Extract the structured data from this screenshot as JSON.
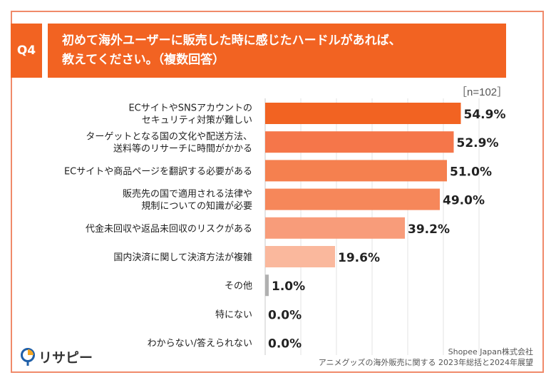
{
  "question": {
    "badge": "Q4",
    "title_line1": "初めて海外ユーザーに販売した時に感じたハードルがあれば、",
    "title_line2": "教えてください。（複数回答）"
  },
  "sample_size": "［n=102］",
  "chart_data": {
    "type": "bar",
    "orientation": "horizontal",
    "title": "初めて海外ユーザーに販売した時に感じたハードルがあれば、教えてください。（複数回答）",
    "categories": [
      [
        "ECサイトやSNSアカウントの",
        "セキュリティ対策が難しい"
      ],
      [
        "ターゲットとなる国の文化や配送方法、",
        "送料等のリサーチに時間がかかる"
      ],
      [
        "ECサイトや商品ページを翻訳する必要がある"
      ],
      [
        "販売先の国で適用される法律や",
        "規制についての知識が必要"
      ],
      [
        "代金未回収や返品未回収のリスクがある"
      ],
      [
        "国内決済に関して決済方法が複雑"
      ],
      [
        "その他"
      ],
      [
        "特にない"
      ],
      [
        "わからない/答えられない"
      ]
    ],
    "values": [
      54.9,
      52.9,
      51.0,
      49.0,
      39.2,
      19.6,
      1.0,
      0.0,
      0.0
    ],
    "value_labels": [
      "54.9%",
      "52.9%",
      "51.0%",
      "49.0%",
      "39.2%",
      "19.6%",
      "1.0%",
      "0.0%",
      "0.0%"
    ],
    "xlim": [
      0,
      60
    ],
    "unit": "%",
    "grid": true,
    "colors": [
      "#f26322",
      "#f5764a",
      "#f5804f",
      "#f6875a",
      "#f89c7a",
      "#fab89d",
      "#b0b0b0",
      "#b0b0b0",
      "#b0b0b0"
    ]
  },
  "brand": {
    "logo_text": "リサピー",
    "logo_color": "#f5a623",
    "logo_dark": "#1f5fa8"
  },
  "credit": {
    "line1": "Shopee Japan株式会社",
    "line2": "アニメグッズの海外販売に関する 2023年総括と2024年展望"
  }
}
